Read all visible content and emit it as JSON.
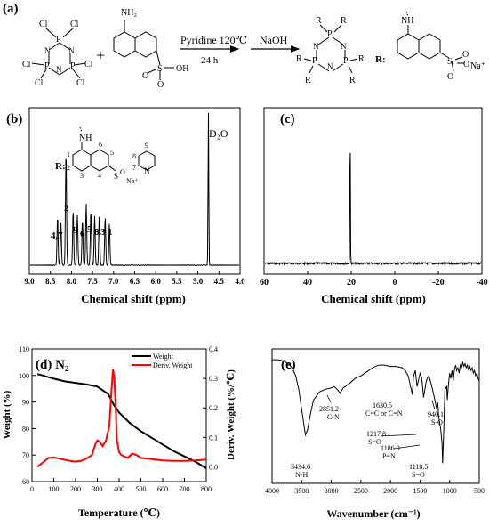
{
  "panel_a": {
    "label": "(a)",
    "reagent_label": "Pyridine 120℃",
    "naoh_label": "NaOH",
    "time_label": "24 h",
    "r_prefix": "R:",
    "cl": "Cl",
    "p": "P",
    "n": "N",
    "r": "R",
    "nh2": "NH₂",
    "nh": "NH",
    "so3h_s": "S",
    "oh": "OH",
    "o": "O",
    "na": "Na⁺",
    "plus": "+"
  },
  "panel_b": {
    "label": "(b)",
    "d2o": "D₂O",
    "xlabel": "Chemical shift (ppm)",
    "ticks": [
      "9.0",
      "8.5",
      "8.0",
      "7.5",
      "7.0",
      "6.5",
      "6.0",
      "5.5",
      "5.0",
      "4.5",
      "4.0"
    ],
    "peak_labels": [
      "4,7",
      "2",
      "9",
      "6",
      "5",
      "8",
      "3",
      "1"
    ],
    "struct_numbers": [
      "1",
      "2",
      "3",
      "4",
      "5",
      "6",
      "8",
      "7",
      "9"
    ],
    "r_prefix": "R:"
  },
  "panel_c": {
    "label": "(c)",
    "xlabel": "Chemical shift (ppm)",
    "ticks": [
      "60",
      "40",
      "20",
      "0",
      "-20",
      "-40"
    ]
  },
  "panel_d": {
    "label": "(d) N₂",
    "xlabel": "Temperature (℃)",
    "ylabel_left": "Weight (%)",
    "ylabel_right": "Deriv. Weight (%/℃)",
    "legend": [
      "Weight",
      "Deriv. Weight"
    ],
    "colors": {
      "weight": "#000000",
      "deriv": "#ff0000"
    },
    "xticks": [
      "0",
      "100",
      "200",
      "300",
      "400",
      "500",
      "600",
      "700",
      "800"
    ],
    "yticks_left": [
      "60",
      "70",
      "80",
      "90",
      "100",
      "110"
    ],
    "yticks_right": [
      "0.0",
      "0.1",
      "0.2",
      "0.3",
      "0.4"
    ]
  },
  "panel_e": {
    "label": "(e)",
    "xlabel": "Wavenumber (cm⁻¹)",
    "xticks": [
      "4000",
      "3500",
      "3000",
      "2500",
      "2000",
      "1500",
      "1000",
      "500"
    ],
    "annotations": [
      {
        "value": "3434.6",
        "bond": "N-H"
      },
      {
        "value": "2851.2",
        "bond": "C-N"
      },
      {
        "value": "1630.5",
        "bond": "C=C or C=N"
      },
      {
        "value": "1217.8",
        "bond": "S=O"
      },
      {
        "value": "1186.0",
        "bond": "P=N"
      },
      {
        "value": "1118.5",
        "bond": "S=O"
      },
      {
        "value": "940.1",
        "bond": "S-O"
      }
    ]
  },
  "chart_data": [
    {
      "type": "line",
      "panel": "(b)",
      "xlabel": "Chemical shift (ppm)",
      "xlim": [
        9.0,
        4.0
      ],
      "peaks": [
        {
          "x": 8.33,
          "y": 0.32,
          "label": "4,7"
        },
        {
          "x": 8.25,
          "y": 0.28,
          "label": "4,7"
        },
        {
          "x": 8.13,
          "y": 0.75,
          "label": "2"
        },
        {
          "x": 7.96,
          "y": 0.36,
          "label": "9"
        },
        {
          "x": 7.86,
          "y": 0.33,
          "label": "6"
        },
        {
          "x": 7.74,
          "y": 0.3,
          "label": "6"
        },
        {
          "x": 7.65,
          "y": 0.4,
          "label": "5"
        },
        {
          "x": 7.54,
          "y": 0.36,
          "label": "8"
        },
        {
          "x": 7.45,
          "y": 0.32,
          "label": "8"
        },
        {
          "x": 7.34,
          "y": 0.33,
          "label": "3"
        },
        {
          "x": 7.2,
          "y": 0.32,
          "label": "1"
        },
        {
          "x": 7.1,
          "y": 0.27,
          "label": "1"
        },
        {
          "x": 4.75,
          "y": 1.0,
          "label": "D2O"
        }
      ]
    },
    {
      "type": "line",
      "panel": "(c)",
      "xlabel": "Chemical shift (ppm)",
      "xlim": [
        60,
        -40
      ],
      "peaks": [
        {
          "x": 20.5,
          "y": 1.0
        }
      ]
    },
    {
      "type": "line",
      "panel": "(d)",
      "xlabel": "Temperature (℃)",
      "ylabel": "Weight (%)",
      "xlim": [
        0,
        800
      ],
      "ylim": [
        60,
        110
      ],
      "ylim_right": [
        -0.05,
        0.4
      ],
      "series": [
        {
          "name": "Weight",
          "axis": "left",
          "x": [
            25,
            50,
            100,
            150,
            200,
            250,
            300,
            350,
            375,
            400,
            450,
            500,
            550,
            600,
            650,
            700,
            750,
            800
          ],
          "y": [
            100.5,
            100,
            98.8,
            97.8,
            97.2,
            96.6,
            95.8,
            93,
            89,
            86,
            82,
            79,
            76.5,
            74,
            71.5,
            69.5,
            67.5,
            65
          ]
        },
        {
          "name": "Deriv. Weight",
          "axis": "right",
          "x": [
            25,
            50,
            75,
            100,
            125,
            150,
            175,
            200,
            225,
            250,
            275,
            290,
            300,
            310,
            325,
            340,
            355,
            365,
            372,
            378,
            384,
            390,
            400,
            410,
            425,
            440,
            460,
            480,
            500,
            550,
            600,
            650,
            700,
            750,
            800
          ],
          "y": [
            0.0,
            0.015,
            0.03,
            0.032,
            0.028,
            0.024,
            0.02,
            0.018,
            0.02,
            0.028,
            0.04,
            0.075,
            0.09,
            0.085,
            0.07,
            0.09,
            0.14,
            0.26,
            0.33,
            0.3,
            0.2,
            0.09,
            0.05,
            0.04,
            0.035,
            0.03,
            0.045,
            0.04,
            0.03,
            0.026,
            0.022,
            0.02,
            0.02,
            0.022,
            0.025
          ]
        }
      ]
    },
    {
      "type": "line",
      "panel": "(e)",
      "xlabel": "Wavenumber (cm⁻¹)",
      "xlim": [
        4000,
        500
      ],
      "ylim": [
        0,
        100
      ],
      "series": [
        {
          "name": "",
          "x": [
            4000,
            3900,
            3800,
            3700,
            3650,
            3600,
            3550,
            3500,
            3450,
            3434.6,
            3400,
            3350,
            3300,
            3200,
            3100,
            3000,
            2950,
            2900,
            2851.2,
            2800,
            2700,
            2600,
            2500,
            2400,
            2300,
            2200,
            2100,
            2000,
            1900,
            1800,
            1750,
            1700,
            1650,
            1630.5,
            1610,
            1580,
            1550,
            1500,
            1470,
            1440,
            1400,
            1380,
            1350,
            1300,
            1250,
            1217.8,
            1200,
            1186,
            1150,
            1130,
            1118.5,
            1100,
            1080,
            1050,
            1040,
            1020,
            1000,
            980,
            960,
            940.1,
            920,
            900,
            880,
            860,
            840,
            820,
            800,
            780,
            760,
            740,
            720,
            700,
            680,
            660,
            640,
            620,
            600,
            580,
            560,
            540,
            520,
            500
          ],
          "y": [
            92,
            92,
            91,
            88,
            85,
            80,
            70,
            55,
            40,
            36,
            40,
            52,
            62,
            68,
            70,
            71,
            72,
            70,
            67,
            71,
            74,
            78,
            80,
            83,
            86,
            88,
            88,
            87,
            87,
            86,
            84,
            80,
            70,
            66,
            80,
            84,
            72,
            82,
            78,
            64,
            75,
            78,
            80,
            72,
            62,
            55,
            60,
            50,
            40,
            30,
            15,
            40,
            70,
            72,
            62,
            74,
            82,
            78,
            84,
            76,
            84,
            88,
            84,
            86,
            82,
            88,
            86,
            90,
            87,
            89,
            86,
            88,
            84,
            87,
            84,
            86,
            82,
            84,
            80,
            82,
            78,
            76
          ]
        }
      ]
    }
  ]
}
